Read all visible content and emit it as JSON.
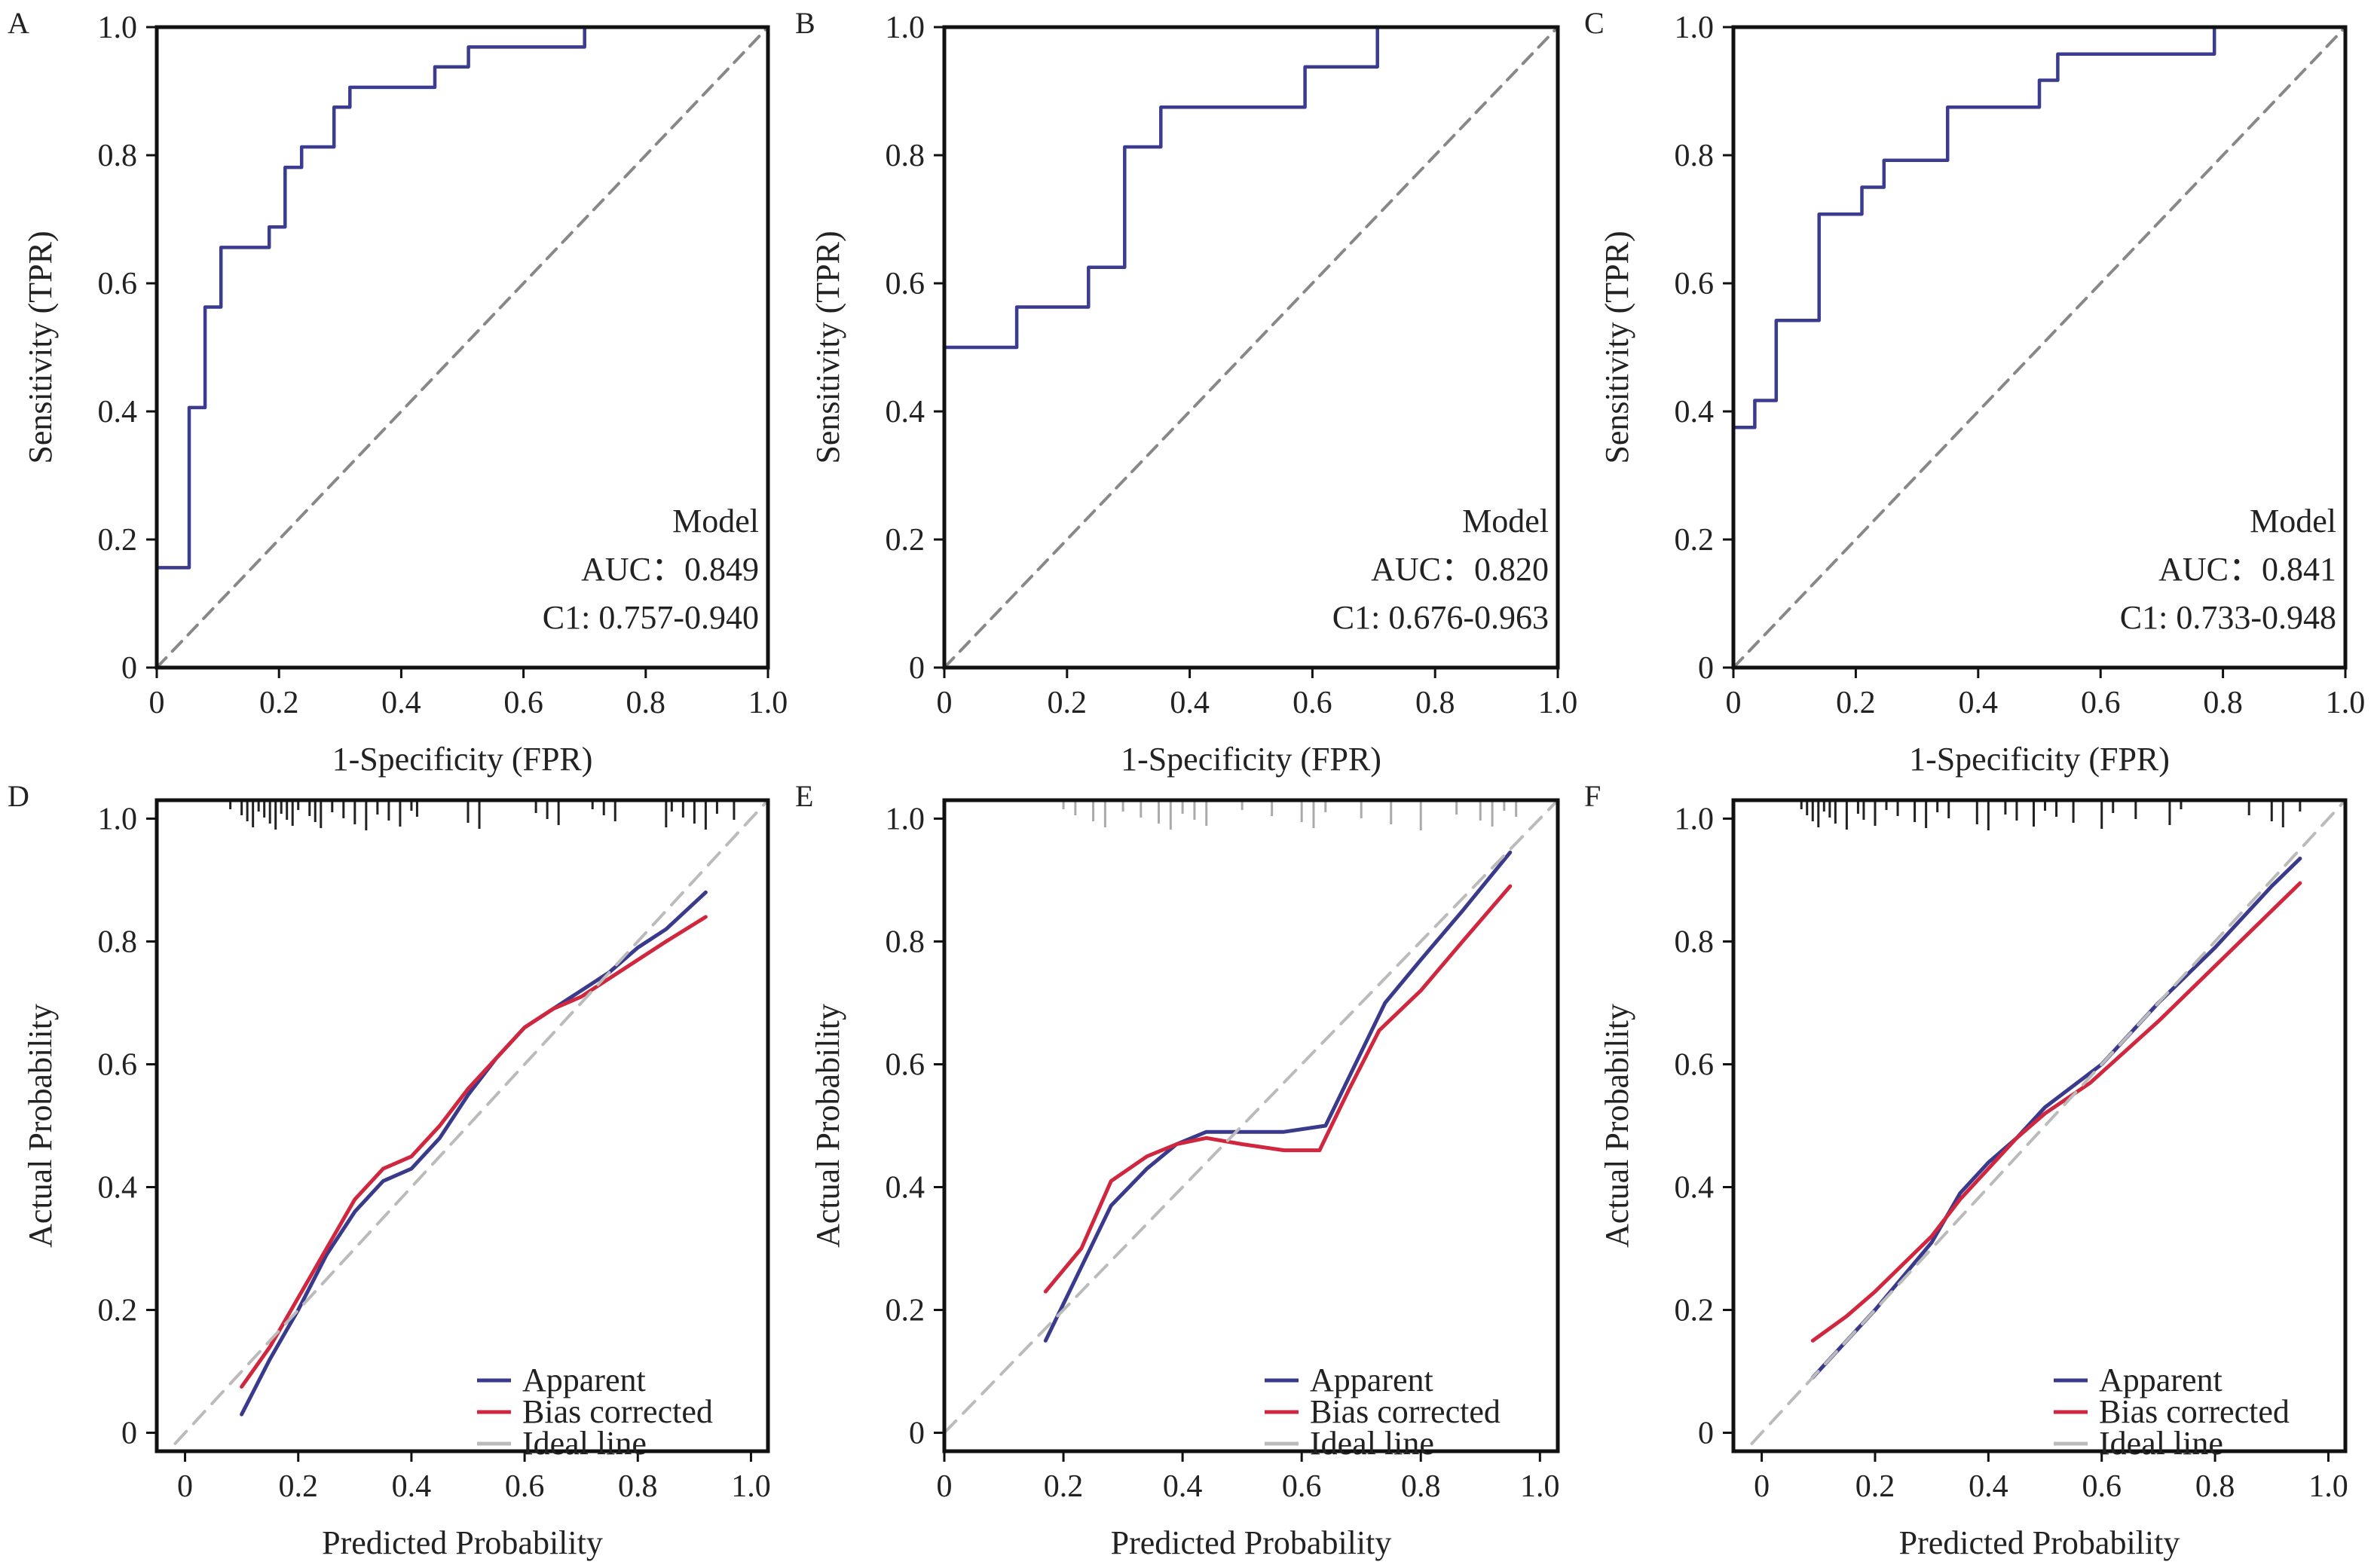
{
  "chart_data": [
    {
      "panel": "A",
      "type": "line",
      "xlabel": "1-Specificity (FPR)",
      "ylabel": "Sensitivity (TPR)",
      "xlim": [
        0,
        1
      ],
      "ylim": [
        0,
        1
      ],
      "xticks": [
        "0",
        "0.2",
        "0.4",
        "0.6",
        "0.8",
        "1.0"
      ],
      "yticks": [
        "0",
        "0.2",
        "0.4",
        "0.6",
        "0.8",
        "1.0"
      ],
      "annotations": [
        "Model",
        "AUC：0.849",
        "C1: 0.757-0.940"
      ],
      "series": [
        {
          "values": [
            [
              0,
              0
            ],
            [
              0,
              0.156
            ],
            [
              0.053,
              0.156
            ],
            [
              0.053,
              0.406
            ],
            [
              0.079,
              0.406
            ],
            [
              0.079,
              0.563
            ],
            [
              0.105,
              0.563
            ],
            [
              0.105,
              0.656
            ],
            [
              0.184,
              0.656
            ],
            [
              0.184,
              0.688
            ],
            [
              0.21,
              0.688
            ],
            [
              0.21,
              0.781
            ],
            [
              0.237,
              0.781
            ],
            [
              0.237,
              0.813
            ],
            [
              0.29,
              0.813
            ],
            [
              0.29,
              0.875
            ],
            [
              0.316,
              0.875
            ],
            [
              0.316,
              0.906
            ],
            [
              0.455,
              0.906
            ],
            [
              0.455,
              0.938
            ],
            [
              0.51,
              0.938
            ],
            [
              0.51,
              0.969
            ],
            [
              0.7,
              0.969
            ],
            [
              0.7,
              1
            ],
            [
              1,
              1
            ]
          ],
          "color": "#3b3b8f",
          "style": "step"
        },
        {
          "values": [
            [
              0,
              0
            ],
            [
              1,
              1
            ]
          ],
          "color": "#888888",
          "style": "dashed"
        }
      ]
    },
    {
      "panel": "B",
      "type": "line",
      "xlabel": "1-Specificity (FPR)",
      "ylabel": "Sensitivity (TPR)",
      "xlim": [
        0,
        1
      ],
      "ylim": [
        0,
        1
      ],
      "xticks": [
        "0",
        "0.2",
        "0.4",
        "0.6",
        "0.8",
        "1.0"
      ],
      "yticks": [
        "0",
        "0.2",
        "0.4",
        "0.6",
        "0.8",
        "1.0"
      ],
      "annotations": [
        "Model",
        "AUC：0.820",
        "C1: 0.676-0.963"
      ],
      "series": [
        {
          "values": [
            [
              0,
              0
            ],
            [
              0,
              0.5
            ],
            [
              0.118,
              0.5
            ],
            [
              0.118,
              0.563
            ],
            [
              0.235,
              0.563
            ],
            [
              0.235,
              0.625
            ],
            [
              0.294,
              0.625
            ],
            [
              0.294,
              0.813
            ],
            [
              0.353,
              0.813
            ],
            [
              0.353,
              0.875
            ],
            [
              0.588,
              0.875
            ],
            [
              0.588,
              0.938
            ],
            [
              0.706,
              0.938
            ],
            [
              0.706,
              1
            ],
            [
              1,
              1
            ]
          ],
          "color": "#3b3b8f",
          "style": "step"
        },
        {
          "values": [
            [
              0,
              0
            ],
            [
              1,
              1
            ]
          ],
          "color": "#888888",
          "style": "dashed"
        }
      ]
    },
    {
      "panel": "C",
      "type": "line",
      "xlabel": "1-Specificity (FPR)",
      "ylabel": "Sensitivity (TPR)",
      "xlim": [
        0,
        1
      ],
      "ylim": [
        0,
        1
      ],
      "xticks": [
        "0",
        "0.2",
        "0.4",
        "0.6",
        "0.8",
        "1.0"
      ],
      "yticks": [
        "0",
        "0.2",
        "0.4",
        "0.6",
        "0.8",
        "1.0"
      ],
      "annotations": [
        "Model",
        "AUC：0.841",
        "C1: 0.733-0.948"
      ],
      "series": [
        {
          "values": [
            [
              0,
              0
            ],
            [
              0,
              0.375
            ],
            [
              0.035,
              0.375
            ],
            [
              0.035,
              0.417
            ],
            [
              0.07,
              0.417
            ],
            [
              0.07,
              0.542
            ],
            [
              0.14,
              0.542
            ],
            [
              0.14,
              0.708
            ],
            [
              0.21,
              0.708
            ],
            [
              0.21,
              0.75
            ],
            [
              0.246,
              0.75
            ],
            [
              0.246,
              0.792
            ],
            [
              0.35,
              0.792
            ],
            [
              0.35,
              0.875
            ],
            [
              0.5,
              0.875
            ],
            [
              0.5,
              0.917
            ],
            [
              0.53,
              0.917
            ],
            [
              0.53,
              0.958
            ],
            [
              0.786,
              0.958
            ],
            [
              0.786,
              1
            ],
            [
              1,
              1
            ]
          ],
          "color": "#3b3b8f",
          "style": "step"
        },
        {
          "values": [
            [
              0,
              0
            ],
            [
              1,
              1
            ]
          ],
          "color": "#888888",
          "style": "dashed"
        }
      ]
    },
    {
      "panel": "D",
      "type": "line",
      "xlabel": "Predicted Probability",
      "ylabel": "Actual Probability",
      "xlim": [
        -0.05,
        1.03
      ],
      "ylim": [
        -0.03,
        1.03
      ],
      "xticks": [
        "0",
        "0.2",
        "0.4",
        "0.6",
        "0.8",
        "1.0"
      ],
      "yticks": [
        "0",
        "0.2",
        "0.4",
        "0.6",
        "0.8",
        "1.0"
      ],
      "legend": [
        "Apparent",
        "Bias corrected",
        "Ideal line"
      ],
      "series": [
        {
          "name": "Apparent",
          "color": "#3a3a8c",
          "values": [
            [
              0.1,
              0.03
            ],
            [
              0.15,
              0.12
            ],
            [
              0.2,
              0.2
            ],
            [
              0.25,
              0.29
            ],
            [
              0.3,
              0.36
            ],
            [
              0.35,
              0.41
            ],
            [
              0.4,
              0.43
            ],
            [
              0.45,
              0.48
            ],
            [
              0.5,
              0.55
            ],
            [
              0.55,
              0.61
            ],
            [
              0.6,
              0.66
            ],
            [
              0.65,
              0.69
            ],
            [
              0.7,
              0.72
            ],
            [
              0.75,
              0.75
            ],
            [
              0.8,
              0.79
            ],
            [
              0.85,
              0.82
            ],
            [
              0.92,
              0.88
            ]
          ]
        },
        {
          "name": "Bias corrected",
          "color": "#d0273f",
          "values": [
            [
              0.1,
              0.075
            ],
            [
              0.15,
              0.14
            ],
            [
              0.2,
              0.22
            ],
            [
              0.25,
              0.3
            ],
            [
              0.3,
              0.38
            ],
            [
              0.35,
              0.43
            ],
            [
              0.4,
              0.45
            ],
            [
              0.45,
              0.5
            ],
            [
              0.5,
              0.56
            ],
            [
              0.55,
              0.61
            ],
            [
              0.6,
              0.66
            ],
            [
              0.65,
              0.69
            ],
            [
              0.7,
              0.71
            ],
            [
              0.75,
              0.74
            ],
            [
              0.8,
              0.77
            ],
            [
              0.85,
              0.8
            ],
            [
              0.92,
              0.84
            ]
          ]
        },
        {
          "name": "Ideal line",
          "color": "#bbbbbb",
          "values": [
            [
              -0.05,
              -0.05
            ],
            [
              1.03,
              1.03
            ]
          ]
        }
      ],
      "rug": [
        0.08,
        0.1,
        0.11,
        0.12,
        0.13,
        0.14,
        0.15,
        0.16,
        0.17,
        0.18,
        0.19,
        0.2,
        0.22,
        0.23,
        0.24,
        0.26,
        0.28,
        0.3,
        0.32,
        0.34,
        0.36,
        0.38,
        0.4,
        0.41,
        0.5,
        0.52,
        0.62,
        0.64,
        0.66,
        0.72,
        0.74,
        0.76,
        0.85,
        0.86,
        0.88,
        0.9,
        0.92,
        0.94,
        0.97
      ]
    },
    {
      "panel": "E",
      "type": "line",
      "xlabel": "Predicted Probability",
      "ylabel": "Actual Probability",
      "xlim": [
        0,
        1.03
      ],
      "ylim": [
        -0.03,
        1.03
      ],
      "xticks": [
        "0",
        "0.2",
        "0.4",
        "0.6",
        "0.8",
        "1.0"
      ],
      "yticks": [
        "0",
        "0.2",
        "0.4",
        "0.6",
        "0.8",
        "1.0"
      ],
      "legend": [
        "Apparent",
        "Bias corrected",
        "Ideal line"
      ],
      "series": [
        {
          "name": "Apparent",
          "color": "#3a3a8c",
          "values": [
            [
              0.17,
              0.15
            ],
            [
              0.22,
              0.25
            ],
            [
              0.28,
              0.37
            ],
            [
              0.34,
              0.43
            ],
            [
              0.39,
              0.47
            ],
            [
              0.44,
              0.49
            ],
            [
              0.5,
              0.49
            ],
            [
              0.57,
              0.49
            ],
            [
              0.64,
              0.5
            ],
            [
              0.69,
              0.6
            ],
            [
              0.74,
              0.7
            ],
            [
              0.8,
              0.77
            ],
            [
              0.87,
              0.85
            ],
            [
              0.95,
              0.945
            ]
          ]
        },
        {
          "name": "Bias corrected",
          "color": "#d0273f",
          "values": [
            [
              0.17,
              0.23
            ],
            [
              0.23,
              0.3
            ],
            [
              0.28,
              0.41
            ],
            [
              0.34,
              0.45
            ],
            [
              0.39,
              0.47
            ],
            [
              0.44,
              0.48
            ],
            [
              0.5,
              0.47
            ],
            [
              0.57,
              0.46
            ],
            [
              0.63,
              0.46
            ],
            [
              0.68,
              0.56
            ],
            [
              0.73,
              0.655
            ],
            [
              0.8,
              0.72
            ],
            [
              0.87,
              0.8
            ],
            [
              0.95,
              0.89
            ]
          ]
        },
        {
          "name": "Ideal line",
          "color": "#bbbbbb",
          "values": [
            [
              0,
              0
            ],
            [
              1.03,
              1.03
            ]
          ]
        }
      ],
      "rug": [
        0.2,
        0.22,
        0.25,
        0.27,
        0.3,
        0.33,
        0.36,
        0.38,
        0.4,
        0.42,
        0.44,
        0.5,
        0.55,
        0.6,
        0.62,
        0.64,
        0.7,
        0.75,
        0.8,
        0.86,
        0.9,
        0.92,
        0.94,
        0.96
      ]
    },
    {
      "panel": "F",
      "type": "line",
      "xlabel": "Predicted Probability",
      "ylabel": "Actual Probability",
      "xlim": [
        -0.05,
        1.03
      ],
      "ylim": [
        -0.03,
        1.03
      ],
      "xticks": [
        "0",
        "0.2",
        "0.4",
        "0.6",
        "0.8",
        "1.0"
      ],
      "yticks": [
        "0",
        "0.2",
        "0.4",
        "0.6",
        "0.8",
        "1.0"
      ],
      "legend": [
        "Apparent",
        "Bias corrected",
        "Ideal line"
      ],
      "series": [
        {
          "name": "Apparent",
          "color": "#3a3a8c",
          "values": [
            [
              0.09,
              0.09
            ],
            [
              0.2,
              0.2
            ],
            [
              0.3,
              0.31
            ],
            [
              0.35,
              0.39
            ],
            [
              0.4,
              0.44
            ],
            [
              0.45,
              0.48
            ],
            [
              0.5,
              0.53
            ],
            [
              0.6,
              0.6
            ],
            [
              0.7,
              0.7
            ],
            [
              0.8,
              0.79
            ],
            [
              0.9,
              0.89
            ],
            [
              0.95,
              0.935
            ]
          ]
        },
        {
          "name": "Bias corrected",
          "color": "#d0273f",
          "values": [
            [
              0.09,
              0.15
            ],
            [
              0.15,
              0.19
            ],
            [
              0.2,
              0.23
            ],
            [
              0.3,
              0.32
            ],
            [
              0.35,
              0.38
            ],
            [
              0.4,
              0.43
            ],
            [
              0.45,
              0.48
            ],
            [
              0.5,
              0.52
            ],
            [
              0.58,
              0.57
            ],
            [
              0.7,
              0.67
            ],
            [
              0.8,
              0.76
            ],
            [
              0.9,
              0.85
            ],
            [
              0.95,
              0.895
            ]
          ]
        },
        {
          "name": "Ideal line",
          "color": "#bbbbbb",
          "values": [
            [
              -0.05,
              -0.05
            ],
            [
              1.03,
              1.03
            ]
          ]
        }
      ],
      "rug": [
        0.07,
        0.08,
        0.09,
        0.1,
        0.11,
        0.12,
        0.13,
        0.15,
        0.17,
        0.18,
        0.2,
        0.22,
        0.24,
        0.27,
        0.29,
        0.31,
        0.33,
        0.38,
        0.4,
        0.43,
        0.45,
        0.48,
        0.5,
        0.52,
        0.55,
        0.6,
        0.62,
        0.66,
        0.72,
        0.74,
        0.86,
        0.9,
        0.92,
        0.95
      ]
    }
  ]
}
